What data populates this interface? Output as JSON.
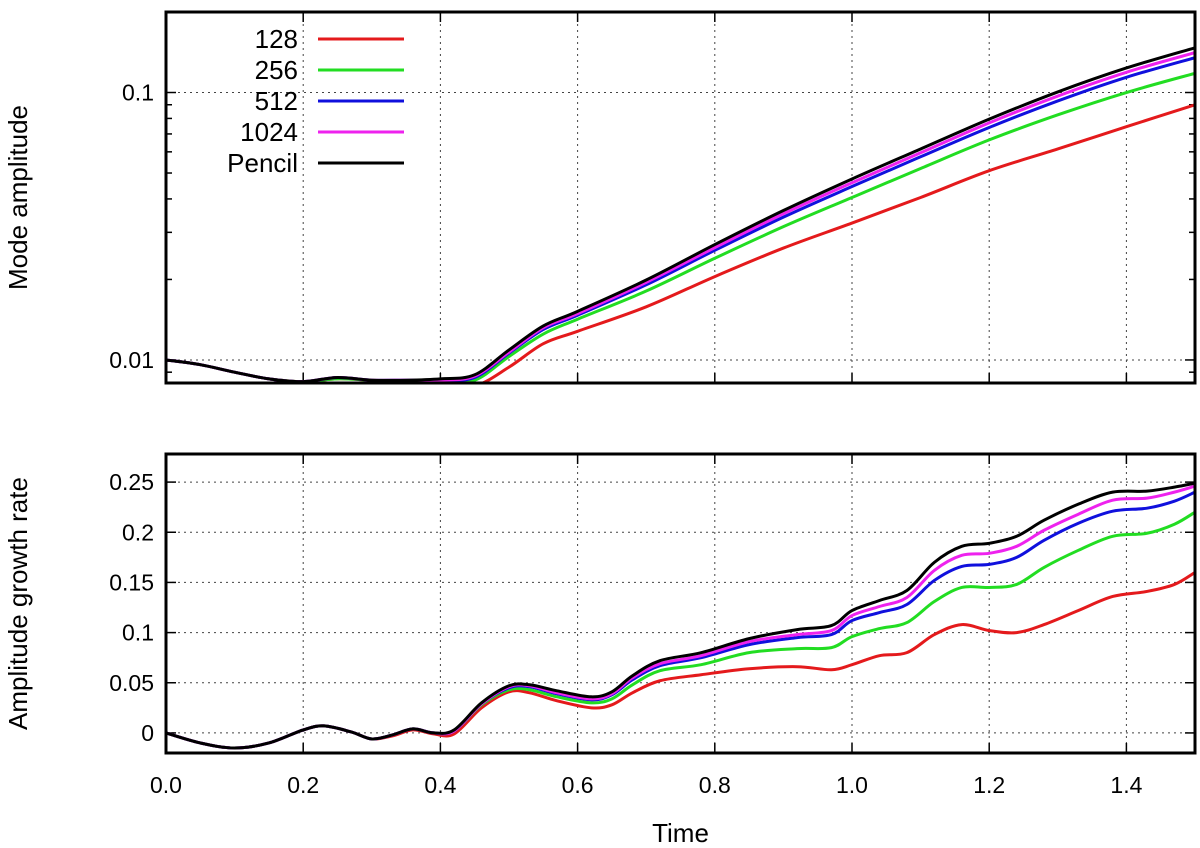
{
  "chart_data": [
    {
      "type": "line",
      "ylabel": "Mode amplitude",
      "xlabel": "",
      "xlim": [
        0,
        1.5
      ],
      "ylim": [
        0.0082,
        0.2
      ],
      "yscale": "log",
      "grid": true,
      "legend_position": "top-left",
      "yticks": [
        0.01,
        0.1
      ],
      "ytick_labels": [
        "0.01",
        "0.1"
      ],
      "series": [
        {
          "name": "128",
          "color": "#e41a1c",
          "x": [
            0,
            0.05,
            0.1,
            0.15,
            0.2,
            0.25,
            0.3,
            0.35,
            0.4,
            0.45,
            0.5,
            0.55,
            0.6,
            0.7,
            0.8,
            0.9,
            1.0,
            1.1,
            1.2,
            1.3,
            1.4,
            1.5
          ],
          "y": [
            0.01,
            0.0096,
            0.009,
            0.0085,
            0.0083,
            0.0085,
            0.0084,
            0.0083,
            0.0082,
            0.008,
            0.0094,
            0.0115,
            0.0128,
            0.0158,
            0.0205,
            0.0262,
            0.0325,
            0.0405,
            0.051,
            0.0615,
            0.0745,
            0.09
          ]
        },
        {
          "name": "256",
          "color": "#22dd22",
          "x": [
            0,
            0.05,
            0.1,
            0.15,
            0.2,
            0.25,
            0.3,
            0.35,
            0.4,
            0.45,
            0.5,
            0.55,
            0.6,
            0.7,
            0.8,
            0.9,
            1.0,
            1.1,
            1.2,
            1.3,
            1.4,
            1.5
          ],
          "y": [
            0.01,
            0.0096,
            0.009,
            0.0085,
            0.0083,
            0.0085,
            0.0084,
            0.0083,
            0.0083,
            0.0084,
            0.0103,
            0.0125,
            0.0142,
            0.0181,
            0.024,
            0.0315,
            0.0405,
            0.052,
            0.0665,
            0.0825,
            0.1,
            0.118
          ]
        },
        {
          "name": "512",
          "color": "#1010dd",
          "x": [
            0,
            0.05,
            0.1,
            0.15,
            0.2,
            0.25,
            0.3,
            0.35,
            0.4,
            0.45,
            0.5,
            0.55,
            0.6,
            0.7,
            0.8,
            0.9,
            1.0,
            1.1,
            1.2,
            1.3,
            1.4,
            1.5
          ],
          "y": [
            0.01,
            0.0096,
            0.009,
            0.0085,
            0.0083,
            0.0086,
            0.0084,
            0.0084,
            0.0084,
            0.0086,
            0.0106,
            0.013,
            0.0147,
            0.0191,
            0.0257,
            0.0342,
            0.0445,
            0.0575,
            0.074,
            0.093,
            0.114,
            0.135
          ]
        },
        {
          "name": "1024",
          "color": "#ee22ee",
          "x": [
            0,
            0.05,
            0.1,
            0.15,
            0.2,
            0.25,
            0.3,
            0.35,
            0.4,
            0.45,
            0.5,
            0.55,
            0.6,
            0.7,
            0.8,
            0.9,
            1.0,
            1.1,
            1.2,
            1.3,
            1.4,
            1.5
          ],
          "y": [
            0.01,
            0.0096,
            0.009,
            0.0085,
            0.0083,
            0.0086,
            0.0084,
            0.0084,
            0.0084,
            0.0087,
            0.0107,
            0.0132,
            0.0149,
            0.0195,
            0.0263,
            0.0352,
            0.046,
            0.0595,
            0.077,
            0.097,
            0.119,
            0.141
          ]
        },
        {
          "name": "Pencil",
          "color": "#000000",
          "x": [
            0,
            0.05,
            0.1,
            0.15,
            0.2,
            0.25,
            0.3,
            0.35,
            0.4,
            0.45,
            0.5,
            0.55,
            0.6,
            0.7,
            0.8,
            0.9,
            1.0,
            1.1,
            1.2,
            1.3,
            1.4,
            1.5
          ],
          "y": [
            0.01,
            0.0096,
            0.009,
            0.0085,
            0.0083,
            0.0086,
            0.0084,
            0.0084,
            0.0085,
            0.0088,
            0.0109,
            0.0134,
            0.0152,
            0.0199,
            0.027,
            0.0362,
            0.0475,
            0.0615,
            0.0795,
            0.1005,
            0.1235,
            0.147
          ]
        }
      ]
    },
    {
      "type": "line",
      "ylabel": "Amplitude growth rate",
      "xlabel": "Time",
      "xlim": [
        0,
        1.5
      ],
      "ylim": [
        -0.02,
        0.278
      ],
      "grid": true,
      "xticks": [
        0.0,
        0.2,
        0.4,
        0.6,
        0.8,
        1.0,
        1.2,
        1.4
      ],
      "xtick_labels": [
        "0.0",
        "0.2",
        "0.4",
        "0.6",
        "0.8",
        "1.0",
        "1.2",
        "1.4"
      ],
      "yticks": [
        0,
        0.05,
        0.1,
        0.15,
        0.2,
        0.25
      ],
      "ytick_labels": [
        "0",
        "0.05",
        "0.1",
        "0.15",
        "0.2",
        "0.25"
      ],
      "series": [
        {
          "name": "128",
          "color": "#e41a1c",
          "x": [
            0,
            0.05,
            0.1,
            0.15,
            0.2,
            0.23,
            0.27,
            0.3,
            0.33,
            0.36,
            0.39,
            0.42,
            0.46,
            0.5,
            0.53,
            0.57,
            0.62,
            0.65,
            0.68,
            0.72,
            0.78,
            0.85,
            0.92,
            0.97,
            1.0,
            1.04,
            1.08,
            1.12,
            1.16,
            1.2,
            1.24,
            1.28,
            1.33,
            1.38,
            1.43,
            1.47,
            1.5
          ],
          "y": [
            0,
            -0.01,
            -0.015,
            -0.01,
            0.003,
            0.007,
            0.001,
            -0.006,
            -0.003,
            0.003,
            -0.001,
            -0.001,
            0.025,
            0.041,
            0.04,
            0.032,
            0.025,
            0.028,
            0.04,
            0.052,
            0.058,
            0.064,
            0.066,
            0.063,
            0.068,
            0.077,
            0.08,
            0.098,
            0.108,
            0.102,
            0.1,
            0.108,
            0.122,
            0.136,
            0.141,
            0.148,
            0.16
          ]
        },
        {
          "name": "256",
          "color": "#22dd22",
          "x": [
            0,
            0.05,
            0.1,
            0.15,
            0.2,
            0.23,
            0.27,
            0.3,
            0.33,
            0.36,
            0.39,
            0.42,
            0.46,
            0.5,
            0.53,
            0.57,
            0.62,
            0.65,
            0.68,
            0.72,
            0.78,
            0.85,
            0.92,
            0.97,
            1.0,
            1.04,
            1.08,
            1.12,
            1.16,
            1.2,
            1.24,
            1.28,
            1.33,
            1.38,
            1.43,
            1.47,
            1.5
          ],
          "y": [
            0,
            -0.01,
            -0.015,
            -0.01,
            0.003,
            0.007,
            0.001,
            -0.006,
            -0.002,
            0.004,
            0.0,
            0.002,
            0.028,
            0.043,
            0.043,
            0.036,
            0.03,
            0.034,
            0.048,
            0.062,
            0.068,
            0.08,
            0.084,
            0.085,
            0.096,
            0.104,
            0.11,
            0.131,
            0.145,
            0.145,
            0.148,
            0.165,
            0.182,
            0.196,
            0.199,
            0.208,
            0.22
          ]
        },
        {
          "name": "512",
          "color": "#1010dd",
          "x": [
            0,
            0.05,
            0.1,
            0.15,
            0.2,
            0.23,
            0.27,
            0.3,
            0.33,
            0.36,
            0.39,
            0.42,
            0.46,
            0.5,
            0.53,
            0.57,
            0.62,
            0.65,
            0.68,
            0.72,
            0.78,
            0.85,
            0.92,
            0.97,
            1.0,
            1.04,
            1.08,
            1.12,
            1.16,
            1.2,
            1.24,
            1.28,
            1.33,
            1.38,
            1.43,
            1.47,
            1.5
          ],
          "y": [
            0,
            -0.01,
            -0.015,
            -0.01,
            0.003,
            0.007,
            0.001,
            -0.006,
            -0.002,
            0.004,
            0.0,
            0.002,
            0.029,
            0.045,
            0.046,
            0.039,
            0.033,
            0.038,
            0.053,
            0.067,
            0.075,
            0.088,
            0.095,
            0.098,
            0.112,
            0.12,
            0.128,
            0.152,
            0.166,
            0.168,
            0.175,
            0.192,
            0.209,
            0.221,
            0.224,
            0.231,
            0.24
          ]
        },
        {
          "name": "1024",
          "color": "#ee22ee",
          "x": [
            0,
            0.05,
            0.1,
            0.15,
            0.2,
            0.23,
            0.27,
            0.3,
            0.33,
            0.36,
            0.39,
            0.42,
            0.46,
            0.5,
            0.53,
            0.57,
            0.62,
            0.65,
            0.68,
            0.72,
            0.78,
            0.85,
            0.92,
            0.97,
            1.0,
            1.04,
            1.08,
            1.12,
            1.16,
            1.2,
            1.24,
            1.28,
            1.33,
            1.38,
            1.43,
            1.47,
            1.5
          ],
          "y": [
            0,
            -0.01,
            -0.015,
            -0.01,
            0.003,
            0.007,
            0.001,
            -0.006,
            -0.002,
            0.004,
            0.0,
            0.002,
            0.029,
            0.046,
            0.047,
            0.04,
            0.034,
            0.039,
            0.055,
            0.069,
            0.077,
            0.091,
            0.098,
            0.102,
            0.117,
            0.126,
            0.135,
            0.162,
            0.177,
            0.179,
            0.186,
            0.202,
            0.218,
            0.232,
            0.234,
            0.24,
            0.246
          ]
        },
        {
          "name": "Pencil",
          "color": "#000000",
          "x": [
            0,
            0.05,
            0.1,
            0.15,
            0.2,
            0.23,
            0.27,
            0.3,
            0.33,
            0.36,
            0.39,
            0.42,
            0.46,
            0.5,
            0.53,
            0.57,
            0.62,
            0.65,
            0.68,
            0.72,
            0.78,
            0.85,
            0.92,
            0.97,
            1.0,
            1.04,
            1.08,
            1.12,
            1.16,
            1.2,
            1.24,
            1.28,
            1.33,
            1.38,
            1.43,
            1.47,
            1.5
          ],
          "y": [
            0,
            -0.01,
            -0.015,
            -0.01,
            0.003,
            0.007,
            0.001,
            -0.006,
            -0.002,
            0.004,
            0.0,
            0.003,
            0.03,
            0.047,
            0.048,
            0.042,
            0.036,
            0.041,
            0.057,
            0.072,
            0.08,
            0.094,
            0.103,
            0.107,
            0.122,
            0.132,
            0.142,
            0.17,
            0.186,
            0.189,
            0.196,
            0.212,
            0.228,
            0.24,
            0.241,
            0.245,
            0.249
          ]
        }
      ]
    }
  ]
}
